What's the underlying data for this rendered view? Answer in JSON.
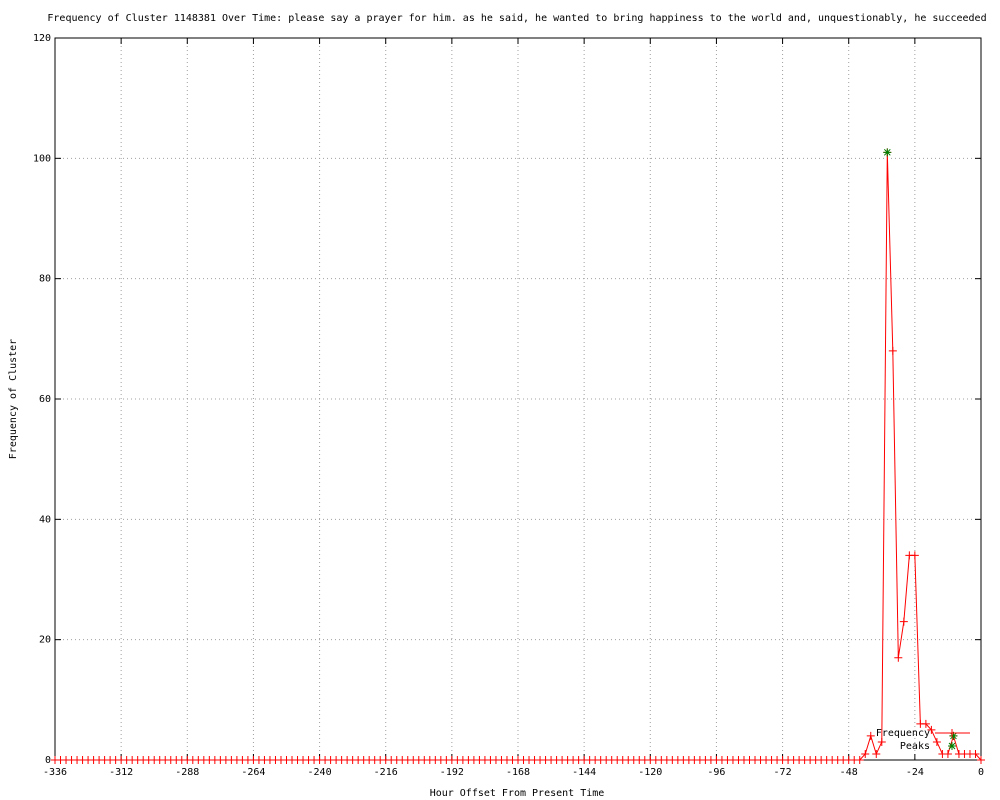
{
  "chart_data": {
    "type": "line",
    "title": "Frequency of Cluster 1148381 Over Time: please say a prayer for him. as he said, he wanted to bring happiness to the world and, unquestionably, he succeeded",
    "x_label": "Hour Offset From Present Time",
    "y_label": "Frequency of Cluster",
    "xlim": [
      -336,
      0
    ],
    "ylim": [
      0,
      120
    ],
    "xticks": [
      -336,
      -312,
      -288,
      -264,
      -240,
      -216,
      -192,
      -168,
      -144,
      -120,
      -96,
      -72,
      -48,
      -24,
      0
    ],
    "yticks": [
      0,
      20,
      40,
      60,
      80,
      100,
      120
    ],
    "grid": true,
    "legend": "bottom-right",
    "series": [
      {
        "name": "Frequency",
        "color": "#ff0000",
        "marker": "plus",
        "x": [
          -336,
          -334,
          -332,
          -330,
          -328,
          -326,
          -324,
          -322,
          -320,
          -318,
          -316,
          -314,
          -312,
          -310,
          -308,
          -306,
          -304,
          -302,
          -300,
          -298,
          -296,
          -294,
          -292,
          -290,
          -288,
          -286,
          -284,
          -282,
          -280,
          -278,
          -276,
          -274,
          -272,
          -270,
          -268,
          -266,
          -264,
          -262,
          -260,
          -258,
          -256,
          -254,
          -252,
          -250,
          -248,
          -246,
          -244,
          -242,
          -240,
          -238,
          -236,
          -234,
          -232,
          -230,
          -228,
          -226,
          -224,
          -222,
          -220,
          -218,
          -216,
          -214,
          -212,
          -210,
          -208,
          -206,
          -204,
          -202,
          -200,
          -198,
          -196,
          -194,
          -192,
          -190,
          -188,
          -186,
          -184,
          -182,
          -180,
          -178,
          -176,
          -174,
          -172,
          -170,
          -168,
          -166,
          -164,
          -162,
          -160,
          -158,
          -156,
          -154,
          -152,
          -150,
          -148,
          -146,
          -144,
          -142,
          -140,
          -138,
          -136,
          -134,
          -132,
          -130,
          -128,
          -126,
          -124,
          -122,
          -120,
          -118,
          -116,
          -114,
          -112,
          -110,
          -108,
          -106,
          -104,
          -102,
          -100,
          -98,
          -96,
          -94,
          -92,
          -90,
          -88,
          -86,
          -84,
          -82,
          -80,
          -78,
          -76,
          -74,
          -72,
          -70,
          -68,
          -66,
          -64,
          -62,
          -60,
          -58,
          -56,
          -54,
          -52,
          -50,
          -48,
          -46,
          -44,
          -42,
          -40,
          -38,
          -36,
          -34,
          -32,
          -30,
          -28,
          -26,
          -24,
          -22,
          -20,
          -18,
          -16,
          -14,
          -12,
          -10,
          -8,
          -6,
          -4,
          -2,
          0
        ],
        "values": [
          0,
          0,
          0,
          0,
          0,
          0,
          0,
          0,
          0,
          0,
          0,
          0,
          0,
          0,
          0,
          0,
          0,
          0,
          0,
          0,
          0,
          0,
          0,
          0,
          0,
          0,
          0,
          0,
          0,
          0,
          0,
          0,
          0,
          0,
          0,
          0,
          0,
          0,
          0,
          0,
          0,
          0,
          0,
          0,
          0,
          0,
          0,
          0,
          0,
          0,
          0,
          0,
          0,
          0,
          0,
          0,
          0,
          0,
          0,
          0,
          0,
          0,
          0,
          0,
          0,
          0,
          0,
          0,
          0,
          0,
          0,
          0,
          0,
          0,
          0,
          0,
          0,
          0,
          0,
          0,
          0,
          0,
          0,
          0,
          0,
          0,
          0,
          0,
          0,
          0,
          0,
          0,
          0,
          0,
          0,
          0,
          0,
          0,
          0,
          0,
          0,
          0,
          0,
          0,
          0,
          0,
          0,
          0,
          0,
          0,
          0,
          0,
          0,
          0,
          0,
          0,
          0,
          0,
          0,
          0,
          0,
          0,
          0,
          0,
          0,
          0,
          0,
          0,
          0,
          0,
          0,
          0,
          0,
          0,
          0,
          0,
          0,
          0,
          0,
          0,
          0,
          0,
          0,
          0,
          0,
          0,
          0,
          1,
          4,
          1,
          3,
          101,
          68,
          17,
          23,
          34,
          34,
          6,
          6,
          5,
          3,
          1,
          1,
          4,
          1,
          1,
          1,
          1,
          0
        ]
      },
      {
        "name": "Peaks",
        "color": "#008000",
        "marker": "star",
        "line": false,
        "x": [
          -34,
          -10
        ],
        "values": [
          101,
          4
        ]
      }
    ]
  }
}
